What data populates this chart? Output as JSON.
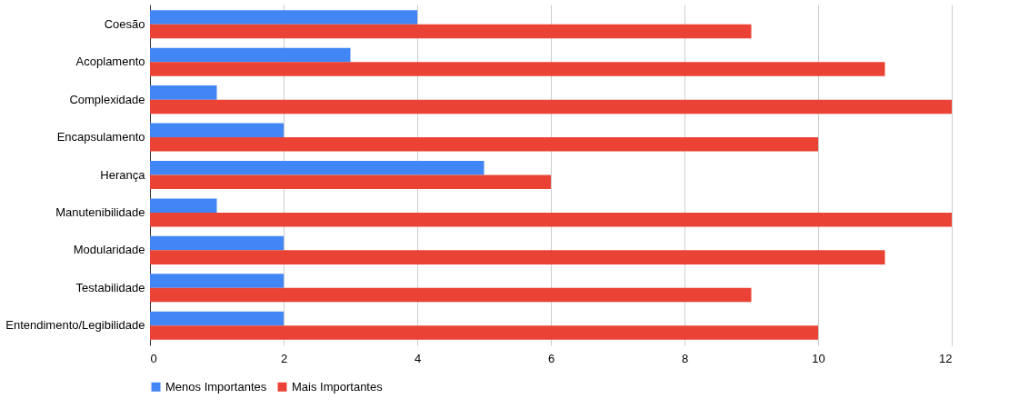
{
  "chart_data": {
    "type": "bar",
    "orientation": "horizontal",
    "categories": [
      "Coesão",
      "Acoplamento",
      "Complexidade",
      "Encapsulamento",
      "Herança",
      "Manutenibilidade",
      "Modularidade",
      "Testabilidade",
      "Entendimento/Legibilidade"
    ],
    "series": [
      {
        "name": "Menos Importantes",
        "color": "#4285f4",
        "values": [
          4,
          3,
          1,
          2,
          5,
          1,
          2,
          2,
          2
        ]
      },
      {
        "name": "Mais Importantes",
        "color": "#ea4335",
        "values": [
          9,
          11,
          12,
          10,
          6,
          12,
          11,
          9,
          10
        ]
      }
    ],
    "xlim": [
      0,
      12
    ],
    "xticks": [
      0,
      2,
      4,
      6,
      8,
      10,
      12
    ],
    "grid": "x",
    "legend": "bottom"
  }
}
